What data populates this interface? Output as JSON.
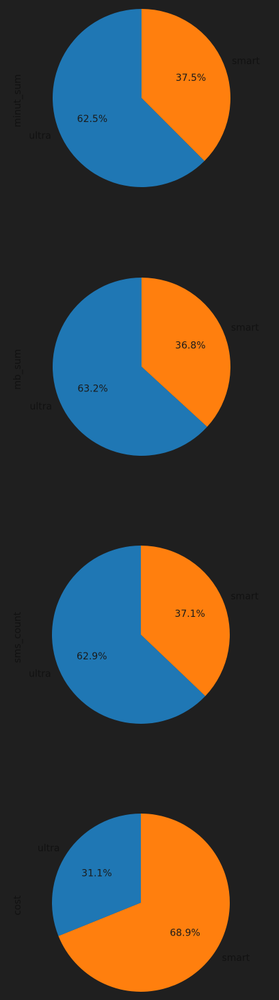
{
  "chart_data": [
    {
      "type": "pie",
      "ylabel": "minut_sum",
      "slices": [
        {
          "label": "smart",
          "percent": 37.5,
          "pct_text": "37.5%",
          "color": "#ff7f0e"
        },
        {
          "label": "ultra",
          "percent": 62.5,
          "pct_text": "62.5%",
          "color": "#1f77b4"
        }
      ]
    },
    {
      "type": "pie",
      "ylabel": "mb_sum",
      "slices": [
        {
          "label": "smart",
          "percent": 36.8,
          "pct_text": "36.8%",
          "color": "#ff7f0e"
        },
        {
          "label": "ultra",
          "percent": 63.2,
          "pct_text": "63.2%",
          "color": "#1f77b4"
        }
      ]
    },
    {
      "type": "pie",
      "ylabel": "sms_count",
      "slices": [
        {
          "label": "smart",
          "percent": 37.1,
          "pct_text": "37.1%",
          "color": "#ff7f0e"
        },
        {
          "label": "ultra",
          "percent": 62.9,
          "pct_text": "62.9%",
          "color": "#1f77b4"
        }
      ]
    },
    {
      "type": "pie",
      "ylabel": "cost",
      "slices": [
        {
          "label": "smart",
          "percent": 68.9,
          "pct_text": "68.9%",
          "color": "#ff7f0e"
        },
        {
          "label": "ultra",
          "percent": 31.1,
          "pct_text": "31.1%",
          "color": "#1f77b4"
        }
      ]
    }
  ]
}
